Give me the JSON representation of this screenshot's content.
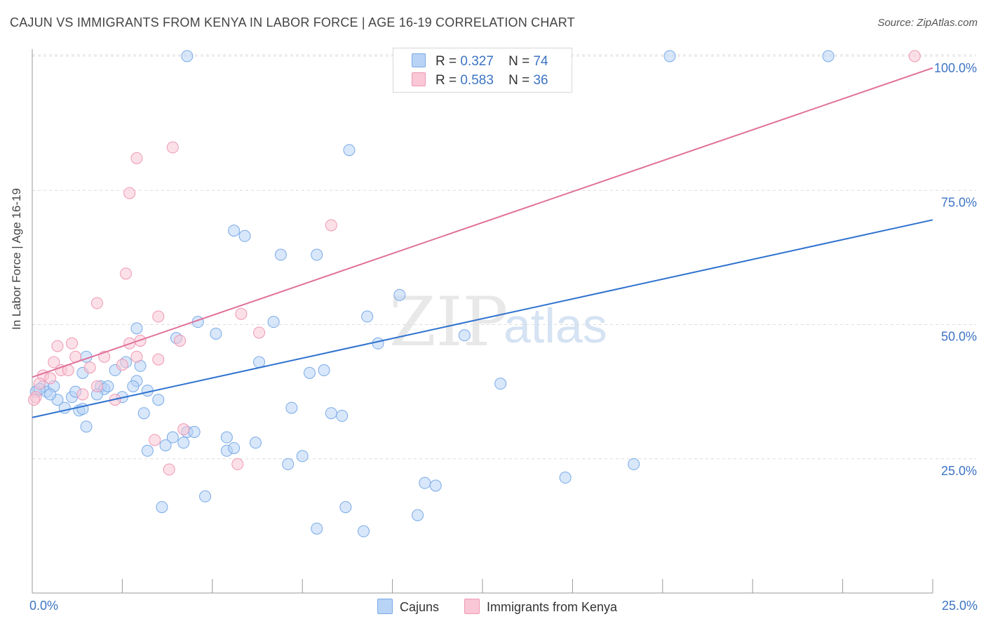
{
  "title": "CAJUN VS IMMIGRANTS FROM KENYA IN LABOR FORCE | AGE 16-19 CORRELATION CHART",
  "source": "Source: ZipAtlas.com",
  "watermark": {
    "zip": "ZIP",
    "atlas": "atlas"
  },
  "legend": {
    "cajuns": {
      "r_label": "R =",
      "r_value": "0.327",
      "n_label": "N =",
      "n_value": "74"
    },
    "kenya": {
      "r_label": "R =",
      "r_value": "0.583",
      "n_label": "N =",
      "n_value": "36"
    }
  },
  "bottom_legend": {
    "cajuns": "Cajuns",
    "kenya": "Immigrants from Kenya"
  },
  "colors": {
    "cajuns_fill": "#b8d3f5",
    "cajuns_stroke": "#7aaae6",
    "cajuns_line": "#2f72cf",
    "kenya_fill": "#f9c7d6",
    "kenya_stroke": "#ee98b3",
    "kenya_line": "#e0709a",
    "tick_text": "#3d74c4"
  },
  "chart_data": {
    "type": "scatter",
    "ylabel": "In Labor Force | Age 16-19",
    "xlim": [
      0,
      25
    ],
    "ylim": [
      0,
      104
    ],
    "x_tick_labels": [
      "0.0%",
      "25.0%"
    ],
    "y_ticks": [
      {
        "value": 25,
        "label": "25.0%"
      },
      {
        "value": 50,
        "label": "50.0%"
      },
      {
        "value": 75,
        "label": "75.0%"
      },
      {
        "value": 100,
        "label": "100.0%"
      }
    ],
    "grid": true,
    "series": [
      {
        "name": "Cajuns",
        "trend": {
          "x": [
            0,
            25
          ],
          "y": [
            32.7,
            69.5
          ]
        },
        "points": [
          [
            4.3,
            100
          ],
          [
            17.7,
            100
          ],
          [
            22.1,
            100
          ],
          [
            8.8,
            82.5
          ],
          [
            5.6,
            67.5
          ],
          [
            5.9,
            66.5
          ],
          [
            6.9,
            63
          ],
          [
            7.9,
            63
          ],
          [
            10.2,
            55.5
          ],
          [
            9.3,
            51.5
          ],
          [
            2.9,
            49.3
          ],
          [
            6.7,
            50.5
          ],
          [
            5.1,
            48.3
          ],
          [
            4.6,
            50.5
          ],
          [
            4.0,
            47.5
          ],
          [
            12.0,
            48
          ],
          [
            9.6,
            46.5
          ],
          [
            1.5,
            44
          ],
          [
            2.6,
            43
          ],
          [
            1.4,
            41
          ],
          [
            6.3,
            43
          ],
          [
            0.3,
            38.5
          ],
          [
            3.0,
            42.3
          ],
          [
            8.1,
            41.5
          ],
          [
            0.4,
            37.5
          ],
          [
            0.6,
            38.5
          ],
          [
            1.1,
            36.5
          ],
          [
            1.2,
            37.5
          ],
          [
            1.9,
            38.5
          ],
          [
            2.0,
            38
          ],
          [
            2.5,
            36.5
          ],
          [
            2.9,
            39.5
          ],
          [
            3.2,
            37.7
          ],
          [
            2.8,
            38.5
          ],
          [
            13.0,
            39
          ],
          [
            1.3,
            34
          ],
          [
            1.4,
            34.3
          ],
          [
            3.1,
            33.5
          ],
          [
            8.3,
            33.5
          ],
          [
            7.2,
            34.5
          ],
          [
            8.6,
            33
          ],
          [
            7.7,
            41
          ],
          [
            2.1,
            38.5
          ],
          [
            0.9,
            34.5
          ],
          [
            0.7,
            36
          ],
          [
            0.1,
            37.5
          ],
          [
            1.5,
            31
          ],
          [
            4.3,
            30
          ],
          [
            3.9,
            29
          ],
          [
            4.2,
            28
          ],
          [
            5.4,
            29
          ],
          [
            3.7,
            27.5
          ],
          [
            3.2,
            26.5
          ],
          [
            5.4,
            26.5
          ],
          [
            5.6,
            27
          ],
          [
            7.5,
            25.5
          ],
          [
            7.1,
            24
          ],
          [
            10.9,
            20.5
          ],
          [
            11.2,
            20
          ],
          [
            14.8,
            21.5
          ],
          [
            16.7,
            24
          ],
          [
            3.6,
            16
          ],
          [
            4.8,
            18
          ],
          [
            8.7,
            16
          ],
          [
            9.2,
            11.5
          ],
          [
            7.9,
            12
          ],
          [
            10.7,
            14.5
          ],
          [
            0.5,
            37
          ],
          [
            4.5,
            30
          ],
          [
            6.2,
            28
          ],
          [
            1.8,
            37
          ],
          [
            3.5,
            36
          ],
          [
            2.3,
            41.5
          ],
          [
            0.2,
            38
          ]
        ]
      },
      {
        "name": "Immigrants from Kenya",
        "trend": {
          "x": [
            0,
            25
          ],
          "y": [
            40.2,
            97.8
          ]
        },
        "points": [
          [
            24.5,
            100
          ],
          [
            3.9,
            83
          ],
          [
            2.9,
            81
          ],
          [
            2.7,
            74.5
          ],
          [
            8.3,
            68.5
          ],
          [
            2.6,
            59.5
          ],
          [
            1.8,
            54
          ],
          [
            5.8,
            52
          ],
          [
            3.5,
            51.5
          ],
          [
            6.3,
            48.5
          ],
          [
            4.1,
            47
          ],
          [
            2.7,
            46.5
          ],
          [
            3.0,
            47
          ],
          [
            1.1,
            46.5
          ],
          [
            0.7,
            46
          ],
          [
            1.2,
            44
          ],
          [
            2.0,
            44
          ],
          [
            0.6,
            43
          ],
          [
            1.6,
            42
          ],
          [
            0.8,
            41.5
          ],
          [
            1.0,
            41.5
          ],
          [
            3.5,
            43.5
          ],
          [
            2.9,
            44
          ],
          [
            0.3,
            40.5
          ],
          [
            0.5,
            40
          ],
          [
            0.2,
            39
          ],
          [
            1.8,
            38.5
          ],
          [
            1.4,
            37
          ],
          [
            2.3,
            36
          ],
          [
            0.1,
            36.5
          ],
          [
            0.05,
            36
          ],
          [
            3.4,
            28.5
          ],
          [
            4.2,
            30.5
          ],
          [
            3.8,
            23
          ],
          [
            5.7,
            24
          ],
          [
            2.5,
            42.5
          ]
        ]
      }
    ]
  }
}
